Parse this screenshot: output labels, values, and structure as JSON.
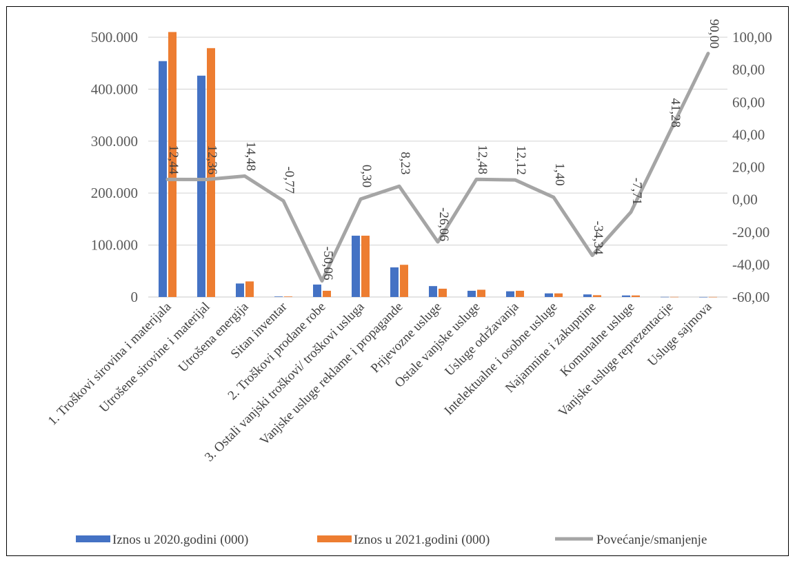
{
  "chart_data": {
    "type": "bar",
    "categories": [
      "1. Troškovi sirovina i materijala",
      "Utrošene sirovine i materijal",
      "Utrošena energija",
      "Sitan inventar",
      "2. Troškovi prodane robe",
      "3. Ostali vanjski troškovi/ troškovi usluga",
      "Vanjske usluge reklame i propagande",
      "Prijevozne usluge",
      "Ostale vanjske usluge",
      "Usluge održavanja",
      "Intelektualne i osobne usluge",
      "Najamnine i zakupnine",
      "Komunalne usluge",
      "Vanjske usluge reprezentacije",
      "Usluge sajmova"
    ],
    "series": [
      {
        "name": "Iznos u 2020.godini (000)",
        "axis": "left",
        "kind": "bar",
        "color": "#4472C4",
        "values": [
          454000,
          426000,
          26000,
          1000,
          24000,
          118000,
          57000,
          21000,
          12000,
          11000,
          7000,
          5000,
          3000,
          300,
          100
        ]
      },
      {
        "name": "Iznos u 2021.godini (000)",
        "axis": "right-none",
        "kind": "bar",
        "color": "#ED7D31",
        "values": [
          510000,
          479000,
          30000,
          1000,
          12000,
          118000,
          62000,
          16000,
          14000,
          12000,
          7000,
          3500,
          3000,
          300,
          200
        ]
      },
      {
        "name": "Povećanje/smanjenje",
        "axis": "right",
        "kind": "line",
        "color": "#A5A5A5",
        "values": [
          12.44,
          12.36,
          14.48,
          -0.77,
          -50.06,
          0.3,
          8.23,
          -26.06,
          12.48,
          12.12,
          1.4,
          -34.34,
          -7.71,
          41.28,
          90.0
        ],
        "labels": [
          "12,44",
          "12,36",
          "14,48",
          "-0,77",
          "-50,06",
          "0,30",
          "8,23",
          "-26,06",
          "12,48",
          "12,12",
          "1,40",
          "-34,34",
          "-7,71",
          "41,28",
          "90,00"
        ]
      }
    ],
    "left_axis": {
      "ylim": [
        0,
        500000
      ],
      "ticks": [
        "0",
        "100.000",
        "200.000",
        "300.000",
        "400.000",
        "500.000"
      ]
    },
    "right_axis": {
      "ylim": [
        -60,
        100
      ],
      "ticks": [
        "-60,00",
        "-40,00",
        "-20,00",
        "0,00",
        "20,00",
        "40,00",
        "60,00",
        "80,00",
        "100,00"
      ]
    },
    "grid": true,
    "legend_position": "bottom",
    "title": "",
    "xlabel": "",
    "ylabel": ""
  }
}
